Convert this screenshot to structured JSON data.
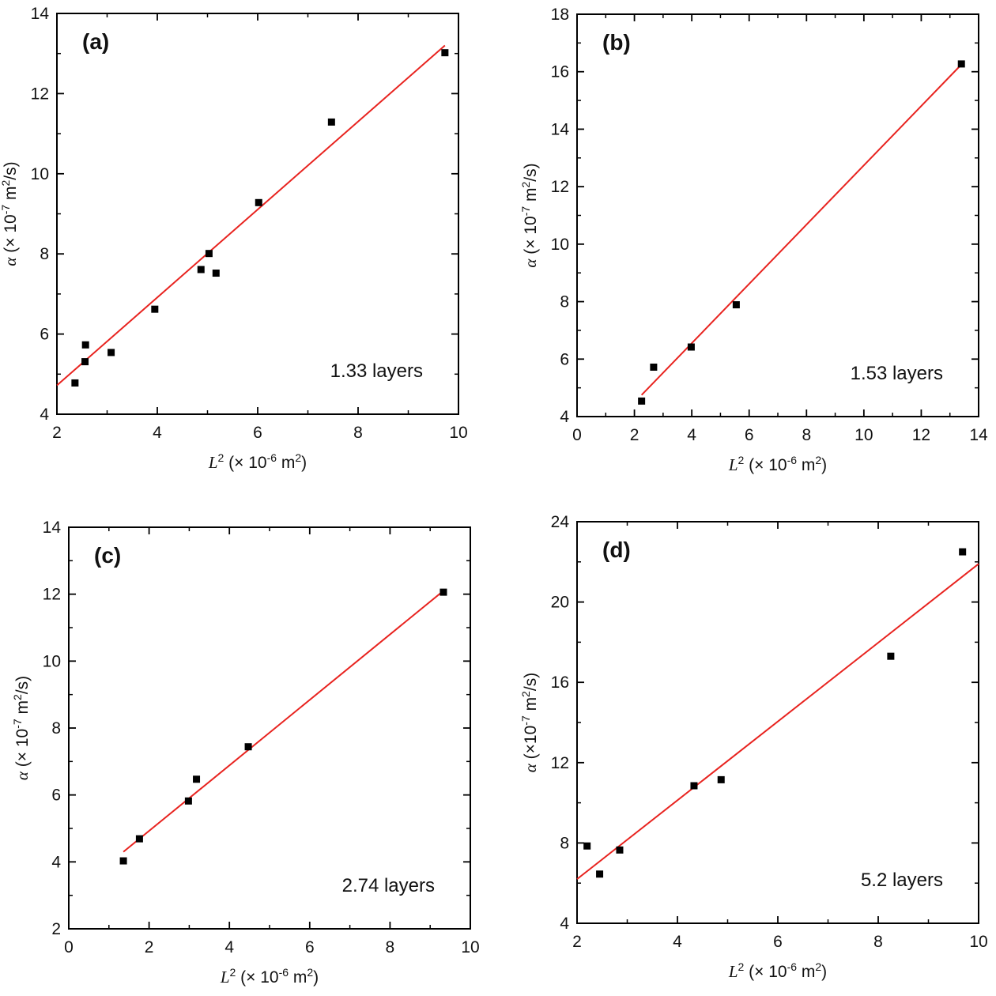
{
  "colors": {
    "fit_line": "#e8231f",
    "marker": "#000000",
    "axis": "#000000"
  },
  "chart_data": [
    {
      "type": "scatter",
      "panel_label": "(a)",
      "annotation": "1.33 layers",
      "xlabel": {
        "sym": "L",
        "sup": "2",
        "open": " (",
        "times": "×",
        "mid": " 10",
        "exp": "-6",
        "unit": " m",
        "unit_sup": "2",
        "close": ")"
      },
      "ylabel": {
        "sym": "α",
        "open": " (",
        "times": "×",
        "mid": " 10",
        "exp": "-7",
        "unit": " m",
        "unit_sup": "2",
        "close": "/s)"
      },
      "xlim": [
        2,
        10
      ],
      "ylim": [
        4,
        14
      ],
      "xticks": [
        2,
        4,
        6,
        8,
        10
      ],
      "yticks": [
        4,
        6,
        8,
        10,
        12,
        14
      ],
      "xtick_labels": [
        "2",
        "4",
        "6",
        "8",
        "10"
      ],
      "ytick_labels": [
        "4",
        "6",
        "8",
        "10",
        "12",
        "14"
      ],
      "points": {
        "x": [
          2.36,
          2.56,
          2.57,
          3.08,
          3.95,
          4.87,
          5.03,
          5.17,
          6.02,
          7.47,
          9.73
        ],
        "y": [
          4.78,
          5.31,
          5.73,
          5.54,
          6.62,
          7.61,
          8.01,
          7.52,
          9.28,
          11.29,
          13.02
        ]
      },
      "fit": {
        "x": [
          2.0,
          9.73
        ],
        "y": [
          4.72,
          13.2
        ]
      }
    },
    {
      "type": "scatter",
      "panel_label": "(b)",
      "annotation": "1.53 layers",
      "xlabel": {
        "sym": "L",
        "sup": "2",
        "open": " (",
        "times": "×",
        "mid": " 10",
        "exp": "-6",
        "unit": " m",
        "unit_sup": "2",
        "close": ")"
      },
      "ylabel": {
        "sym": "α",
        "open": " (",
        "times": "×",
        "mid": " 10",
        "exp": "-7",
        "unit": " m",
        "unit_sup": "2",
        "close": "/s)"
      },
      "xlim": [
        0,
        14
      ],
      "ylim": [
        4,
        18
      ],
      "xticks": [
        0,
        2,
        4,
        6,
        8,
        10,
        12,
        14
      ],
      "yticks": [
        4,
        6,
        8,
        10,
        12,
        14,
        16,
        18
      ],
      "xtick_labels": [
        "0",
        "2",
        "4",
        "6",
        "8",
        "10",
        "12",
        "14"
      ],
      "ytick_labels": [
        "4",
        "6",
        "8",
        "10",
        "12",
        "14",
        "16",
        "18"
      ],
      "points": {
        "x": [
          2.25,
          2.67,
          3.98,
          5.55,
          13.4
        ],
        "y": [
          4.54,
          5.72,
          6.42,
          7.89,
          16.27
        ]
      },
      "fit": {
        "x": [
          2.25,
          13.4
        ],
        "y": [
          4.75,
          16.25
        ]
      }
    },
    {
      "type": "scatter",
      "panel_label": "(c)",
      "annotation": "2.74 layers",
      "xlabel": {
        "sym": "L",
        "sup": "2",
        "open": " (",
        "times": "×",
        "mid": " 10",
        "exp": "-6",
        "unit": " m",
        "unit_sup": "2",
        "close": ")"
      },
      "ylabel": {
        "sym": "α",
        "open": " (",
        "times": "×",
        "mid": " 10",
        "exp": "-7",
        "unit": " m",
        "unit_sup": "2",
        "close": "/s)"
      },
      "xlim": [
        0,
        10
      ],
      "ylim": [
        2,
        14
      ],
      "xticks": [
        0,
        2,
        4,
        6,
        8,
        10
      ],
      "yticks": [
        2,
        4,
        6,
        8,
        10,
        12,
        14
      ],
      "xtick_labels": [
        "0",
        "2",
        "4",
        "6",
        "8",
        "10"
      ],
      "ytick_labels": [
        "2",
        "4",
        "6",
        "8",
        "10",
        "12",
        "14"
      ],
      "points": {
        "x": [
          1.36,
          1.76,
          2.98,
          3.18,
          4.47,
          9.33
        ],
        "y": [
          4.03,
          4.69,
          5.82,
          6.47,
          7.44,
          12.06
        ]
      },
      "fit": {
        "x": [
          1.36,
          9.33
        ],
        "y": [
          4.3,
          12.1
        ]
      }
    },
    {
      "type": "scatter",
      "panel_label": "(d)",
      "annotation": "5.2 layers",
      "xlabel": {
        "sym": "L",
        "sup": "2",
        "open": " (",
        "times": "×",
        "mid": " 10",
        "exp": "-6",
        "unit": " m",
        "unit_sup": "2",
        "close": ")"
      },
      "ylabel": {
        "sym": "α",
        "open": " (",
        "times": "×",
        "mid": "10",
        "exp": "-7",
        "unit": " m",
        "unit_sup": "2",
        "close": "/s)"
      },
      "xlim": [
        2,
        10
      ],
      "ylim": [
        4,
        24
      ],
      "xticks": [
        2,
        4,
        6,
        8,
        10
      ],
      "yticks": [
        4,
        8,
        12,
        16,
        20,
        24
      ],
      "xtick_labels": [
        "2",
        "4",
        "6",
        "8",
        "10"
      ],
      "ytick_labels": [
        "4",
        "8",
        "12",
        "16",
        "20",
        "24"
      ],
      "points": {
        "x": [
          2.2,
          2.45,
          2.85,
          4.33,
          4.87,
          8.25,
          9.68
        ],
        "y": [
          7.85,
          6.45,
          7.65,
          10.85,
          11.15,
          17.3,
          22.5
        ]
      },
      "fit": {
        "x": [
          2.0,
          10.0
        ],
        "y": [
          6.2,
          21.9
        ]
      }
    }
  ]
}
